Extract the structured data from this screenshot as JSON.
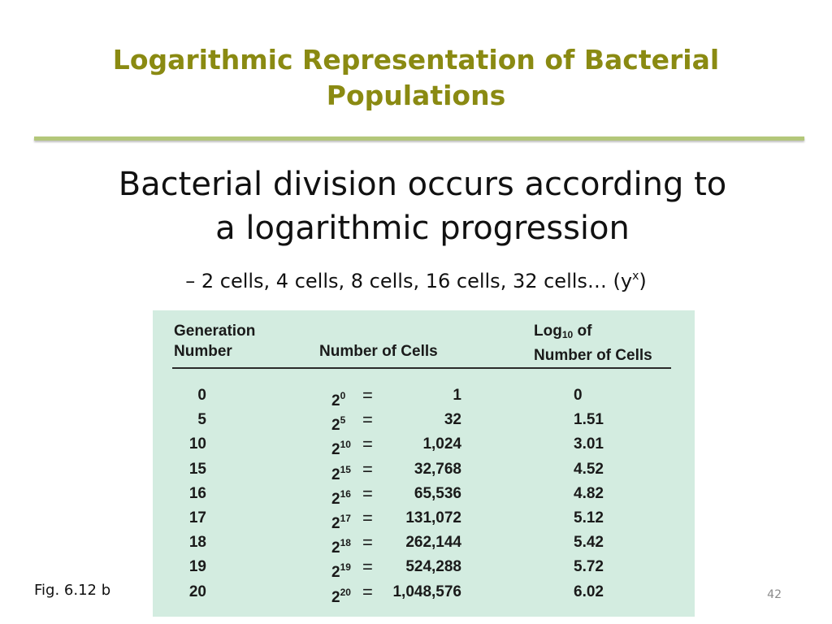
{
  "slide": {
    "title_line1": "Logarithmic Representation of Bacterial",
    "title_line2": "Populations",
    "bullet_main_line1": "Bacterial division occurs according to",
    "bullet_main_line2": "a logarithmic progression",
    "bullet_sub_text": "– 2 cells, 4 cells, 8 cells, 16 cells, 32 cells… (y",
    "bullet_sub_sup": "x",
    "bullet_sub_close": ")",
    "figure_caption": "Fig. 6.12 b",
    "slide_number": "42",
    "colors": {
      "title": "#8a8a12",
      "rule": "#b3c77a",
      "table_bg": "#d3ece0"
    }
  },
  "table": {
    "headers": {
      "generation_line1": "Generation",
      "generation_line2": "Number",
      "cells": "Number of Cells",
      "log_line1_prefix": "Log",
      "log_line1_sub": "10",
      "log_line1_suffix": " of",
      "log_line2": "Number of Cells"
    },
    "rows": [
      {
        "generation": "0",
        "base": "2",
        "exponent": "0",
        "equals": "=",
        "cells": "1",
        "log": "0"
      },
      {
        "generation": "5",
        "base": "2",
        "exponent": "5",
        "equals": "=",
        "cells": "32",
        "log": "1.51"
      },
      {
        "generation": "10",
        "base": "2",
        "exponent": "10",
        "equals": "=",
        "cells": "1,024",
        "log": "3.01"
      },
      {
        "generation": "15",
        "base": "2",
        "exponent": "15",
        "equals": "=",
        "cells": "32,768",
        "log": "4.52"
      },
      {
        "generation": "16",
        "base": "2",
        "exponent": "16",
        "equals": "=",
        "cells": "65,536",
        "log": "4.82"
      },
      {
        "generation": "17",
        "base": "2",
        "exponent": "17",
        "equals": "=",
        "cells": "131,072",
        "log": "5.12"
      },
      {
        "generation": "18",
        "base": "2",
        "exponent": "18",
        "equals": "=",
        "cells": "262,144",
        "log": "5.42"
      },
      {
        "generation": "19",
        "base": "2",
        "exponent": "19",
        "equals": "=",
        "cells": "524,288",
        "log": "5.72"
      },
      {
        "generation": "20",
        "base": "2",
        "exponent": "20",
        "equals": "=",
        "cells": "1,048,576",
        "log": "6.02"
      }
    ]
  }
}
